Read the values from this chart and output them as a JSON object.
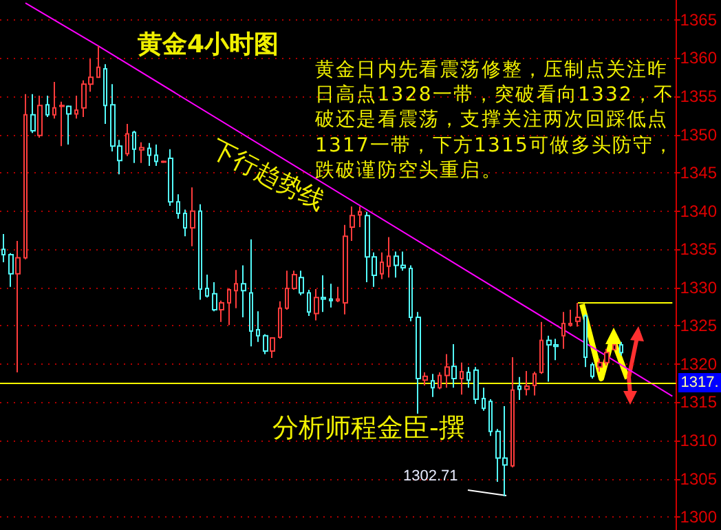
{
  "chart_data": {
    "type": "candlestick",
    "title": "黄金4小时图",
    "annotations": [
      "黄金日内先看震荡修整，压制点关注昨日高点1328一带，突破看向1332，不破还是看震荡，支撑关注两次回踩低点1317一带，下方1315可做多头防守，跌破谨防空头重启。",
      "分析师程金臣-撰",
      "1302.71",
      "1317."
    ],
    "categories": [
      null,
      null,
      null,
      null,
      null,
      null,
      null,
      null,
      null,
      null,
      null,
      null,
      null,
      null,
      null,
      null,
      null,
      null,
      null,
      null,
      null,
      null,
      null,
      null,
      null,
      null,
      null,
      null,
      null,
      null,
      null,
      null,
      null,
      null,
      null,
      null,
      null,
      null,
      null,
      null,
      null,
      null,
      null,
      null,
      null,
      null,
      null,
      null,
      null,
      null,
      null,
      null,
      null,
      null,
      null,
      null,
      null,
      null,
      null,
      null,
      null,
      null,
      null,
      null,
      null,
      null,
      null,
      null,
      null,
      null,
      null,
      null,
      null,
      null,
      null,
      null,
      null,
      null,
      null,
      null,
      null,
      null,
      null,
      null,
      null,
      null,
      null,
      null,
      null,
      null,
      null,
      null,
      null
    ],
    "ohlc": [
      [
        1335.0,
        1337.0,
        1333.3,
        1334.3
      ],
      [
        1334.3,
        1334.5,
        1330.1,
        1331.8
      ],
      [
        1331.8,
        1336.1,
        1318.9,
        1333.9
      ],
      [
        1333.9,
        1355.3,
        1333.7,
        1352.6
      ],
      [
        1352.6,
        1355.3,
        1350.2,
        1350.5
      ],
      [
        1349.9,
        1355.1,
        1349.6,
        1353.8
      ],
      [
        1353.9,
        1355.1,
        1352.3,
        1352.6
      ],
      [
        1352.6,
        1356.9,
        1352.1,
        1353.5
      ],
      [
        1353.7,
        1354.3,
        1348.5,
        1353.8
      ],
      [
        1353.7,
        1353.8,
        1348.7,
        1352.7
      ],
      [
        1352.7,
        1355.1,
        1352.1,
        1353.2
      ],
      [
        1353.5,
        1357.1,
        1352.3,
        1356.6
      ],
      [
        1356.6,
        1359.9,
        1355.6,
        1357.5
      ],
      [
        1357.5,
        1361.6,
        1357.4,
        1358.8
      ],
      [
        1358.6,
        1359.2,
        1351.4,
        1353.8
      ],
      [
        1353.9,
        1356.6,
        1347.8,
        1348.5
      ],
      [
        1348.5,
        1349.3,
        1344.8,
        1346.6
      ],
      [
        1347.5,
        1351.4,
        1347.2,
        1350.1
      ],
      [
        1350.3,
        1350.5,
        1346.3,
        1348.1
      ],
      [
        1348.0,
        1349.0,
        1346.3,
        1348.3
      ],
      [
        1348.2,
        1348.9,
        1345.9,
        1347.3
      ],
      [
        1347.3,
        1348.7,
        1345.9,
        1346.5
      ],
      [
        1346.4,
        1346.6,
        1346.3,
        1346.5
      ],
      [
        1346.9,
        1348.1,
        1340.7,
        1341.2
      ],
      [
        1341.2,
        1342.2,
        1339.0,
        1339.7
      ],
      [
        1339.7,
        1340.2,
        1336.7,
        1337.8
      ],
      [
        1337.8,
        1343.1,
        1335.4,
        1340.0
      ],
      [
        1340.0,
        1340.9,
        1328.4,
        1329.8
      ],
      [
        1329.9,
        1331.7,
        1328.7,
        1328.9
      ],
      [
        1329.2,
        1330.7,
        1326.9,
        1327.1
      ],
      [
        1327.1,
        1328.3,
        1325.5,
        1328.0
      ],
      [
        1328.0,
        1329.9,
        1325.1,
        1329.7
      ],
      [
        1329.6,
        1332.3,
        1327.3,
        1330.5
      ],
      [
        1330.5,
        1332.9,
        1326.1,
        1329.6
      ],
      [
        1329.3,
        1336.3,
        1322.3,
        1324.3
      ],
      [
        1324.5,
        1326.9,
        1322.9,
        1323.7
      ],
      [
        1323.7,
        1323.9,
        1321.3,
        1321.7
      ],
      [
        1321.7,
        1323.5,
        1320.8,
        1323.4
      ],
      [
        1323.5,
        1328.2,
        1323.3,
        1327.3
      ],
      [
        1327.3,
        1332.2,
        1327.1,
        1329.9
      ],
      [
        1329.9,
        1332.2,
        1329.7,
        1331.7
      ],
      [
        1331.3,
        1332.2,
        1329.0,
        1329.3
      ],
      [
        1329.3,
        1329.7,
        1326.3,
        1326.8
      ],
      [
        1326.6,
        1329.8,
        1325.7,
        1328.7
      ],
      [
        1328.7,
        1331.6,
        1326.8,
        1328.5
      ],
      [
        1328.5,
        1330.5,
        1327.4,
        1328.3
      ],
      [
        1328.3,
        1330.1,
        1328.1,
        1328.5
      ],
      [
        1328.0,
        1338.2,
        1326.5,
        1336.7
      ],
      [
        1337.9,
        1340.6,
        1336.1,
        1339.4
      ],
      [
        1339.5,
        1340.6,
        1337.9,
        1339.9
      ],
      [
        1339.4,
        1339.9,
        1330.7,
        1334.0
      ],
      [
        1334.0,
        1334.6,
        1330.1,
        1331.6
      ],
      [
        1331.8,
        1334.6,
        1331.1,
        1333.3
      ],
      [
        1332.8,
        1336.6,
        1331.3,
        1334.1
      ],
      [
        1334.1,
        1334.7,
        1331.3,
        1332.9
      ],
      [
        1332.9,
        1334.7,
        1332.2,
        1332.6
      ],
      [
        1332.5,
        1332.9,
        1325.6,
        1326.1
      ],
      [
        1326.1,
        1326.8,
        1313.5,
        1318.1
      ],
      [
        1317.9,
        1318.9,
        1317.2,
        1318.4
      ],
      [
        1317.8,
        1318.7,
        1315.7,
        1316.9
      ],
      [
        1316.9,
        1318.9,
        1316.7,
        1318.5
      ],
      [
        1318.5,
        1321.3,
        1316.9,
        1319.6
      ],
      [
        1319.7,
        1322.6,
        1316.9,
        1318.1
      ],
      [
        1318.1,
        1320.2,
        1316.0,
        1319.0
      ],
      [
        1318.9,
        1319.6,
        1316.9,
        1317.9
      ],
      [
        1319.2,
        1319.6,
        1314.8,
        1315.4
      ],
      [
        1315.5,
        1316.9,
        1313.9,
        1314.2
      ],
      [
        1315.1,
        1315.4,
        1310.6,
        1311.2
      ],
      [
        1311.2,
        1311.5,
        1304.6,
        1307.7
      ],
      [
        1307.7,
        1314.5,
        1302.71,
        1306.8
      ],
      [
        1306.7,
        1320.9,
        1306.5,
        1316.6
      ],
      [
        1317.1,
        1318.3,
        1315.3,
        1316.7
      ],
      [
        1316.7,
        1319.1,
        1315.9,
        1317.1
      ],
      [
        1317.2,
        1319.0,
        1315.9,
        1318.7
      ],
      [
        1318.9,
        1325.5,
        1318.7,
        1323.1
      ],
      [
        1323.1,
        1323.7,
        1317.7,
        1322.5
      ],
      [
        1322.5,
        1323.3,
        1320.5,
        1322.3
      ],
      [
        1323.7,
        1326.8,
        1322.0,
        1325.3
      ],
      [
        1325.1,
        1327.1,
        1324.9,
        1325.3
      ],
      [
        1325.6,
        1328.0,
        1324.9,
        1326.1
      ],
      [
        1326.3,
        1326.5,
        1319.6,
        1320.9
      ],
      [
        1319.9,
        1320.2,
        1318.1,
        1318.4
      ],
      [
        1319.6,
        1320.7,
        1319.0,
        1320.2
      ],
      [
        1320.2,
        1322.0,
        1319.8,
        1321.5
      ],
      [
        1321.9,
        1322.6,
        1321.8,
        1322.5
      ],
      [
        1322.5,
        1322.9,
        1321.1,
        1321.5
      ],
      null,
      null,
      null,
      null,
      null,
      null,
      null
    ],
    "colors": [
      "#54fcfc",
      "#54fcfc",
      "#ff3c3c",
      "#ff3c3c",
      "#54fcfc",
      "#ff3c3c",
      "#54fcfc",
      "#ff3c3c",
      "#ff3c3c",
      "#54fcfc",
      "#ff3c3c",
      "#ff3c3c",
      "#ff3c3c",
      "#ff3c3c",
      "#54fcfc",
      "#54fcfc",
      "#54fcfc",
      "#ff3c3c",
      "#54fcfc",
      "#ff3c3c",
      "#54fcfc",
      "#54fcfc",
      "#ff3c3c",
      "#54fcfc",
      "#54fcfc",
      "#54fcfc",
      "#ff3c3c",
      "#54fcfc",
      "#54fcfc",
      "#54fcfc",
      "#ff3c3c",
      "#ff3c3c",
      "#ff3c3c",
      "#54fcfc",
      "#54fcfc",
      "#54fcfc",
      "#54fcfc",
      "#ff3c3c",
      "#ff3c3c",
      "#ff3c3c",
      "#ff3c3c",
      "#54fcfc",
      "#54fcfc",
      "#ff3c3c",
      "#54fcfc",
      "#54fcfc",
      "#ff3c3c",
      "#ff3c3c",
      "#ff3c3c",
      "#ff3c3c",
      "#54fcfc",
      "#54fcfc",
      "#ff3c3c",
      "#ff3c3c",
      "#54fcfc",
      "#54fcfc",
      "#54fcfc",
      "#54fcfc",
      "#ff3c3c",
      "#54fcfc",
      "#ff3c3c",
      "#ff3c3c",
      "#54fcfc",
      "#ff3c3c",
      "#54fcfc",
      "#54fcfc",
      "#54fcfc",
      "#54fcfc",
      "#54fcfc",
      "#54fcfc",
      "#ff3c3c",
      "#54fcfc",
      "#ff3c3c",
      "#ff3c3c",
      "#ff3c3c",
      "#54fcfc",
      "#54fcfc",
      "#ff3c3c",
      "#ff3c3c",
      "#ff3c3c",
      "#54fcfc",
      "#54fcfc",
      "#ff3c3c",
      "#ff3c3c",
      "#ff3c3c",
      "#54fcfc",
      null,
      null,
      null,
      null,
      null,
      null,
      null
    ],
    "series": [
      {
        "name": "下行趋势线",
        "type": "line",
        "color": "#ff00ff",
        "values": [
          null,
          null,
          null,
          1367.2,
          null,
          null,
          null,
          null,
          null,
          null,
          null,
          null,
          null,
          1361.6,
          null,
          null,
          null,
          null,
          null,
          null,
          null,
          null,
          null,
          null,
          null,
          null,
          null,
          null,
          null,
          null,
          null,
          null,
          null,
          null,
          null,
          null,
          null,
          null,
          null,
          null,
          null,
          null,
          null,
          null,
          null,
          null,
          null,
          null,
          null,
          null,
          null,
          null,
          null,
          null,
          null,
          null,
          null,
          null,
          null,
          null,
          null,
          null,
          null,
          null,
          null,
          null,
          null,
          null,
          null,
          null,
          null,
          null,
          null,
          null,
          null,
          null,
          null,
          null,
          null,
          null,
          null,
          null,
          null,
          null,
          null,
          null,
          null,
          null,
          null,
          null,
          null,
          null,
          1315.8
        ]
      },
      {
        "type": "line",
        "color": "#ffff00",
        "values": [
          null,
          null,
          null,
          null,
          null,
          null,
          null,
          null,
          null,
          null,
          null,
          null,
          null,
          null,
          null,
          null,
          null,
          null,
          null,
          null,
          null,
          null,
          null,
          null,
          null,
          null,
          null,
          null,
          null,
          null,
          null,
          null,
          null,
          null,
          null,
          null,
          null,
          null,
          null,
          null,
          null,
          null,
          null,
          null,
          null,
          null,
          null,
          null,
          null,
          null,
          null,
          null,
          null,
          null,
          null,
          null,
          null,
          null,
          null,
          null,
          null,
          null,
          null,
          null,
          null,
          null,
          null,
          null,
          null,
          null,
          null,
          null,
          null,
          null,
          null,
          null,
          null,
          null,
          null,
          1328,
          null,
          null,
          null,
          null,
          null,
          null,
          null,
          null,
          null,
          null,
          null,
          null,
          1328
        ]
      }
    ],
    "ref_lines": [
      {
        "axis": "y",
        "value": 1317.5,
        "color": "#ffff00"
      }
    ],
    "ylim": [
      1298.3,
      1367.6
    ],
    "yticks": [
      1300,
      1305,
      1310,
      1315,
      1320,
      1325,
      1330,
      1335,
      1340,
      1345,
      1350,
      1355,
      1360,
      1365
    ],
    "grid": "y",
    "legend": false,
    "tick_labels": "y"
  }
}
